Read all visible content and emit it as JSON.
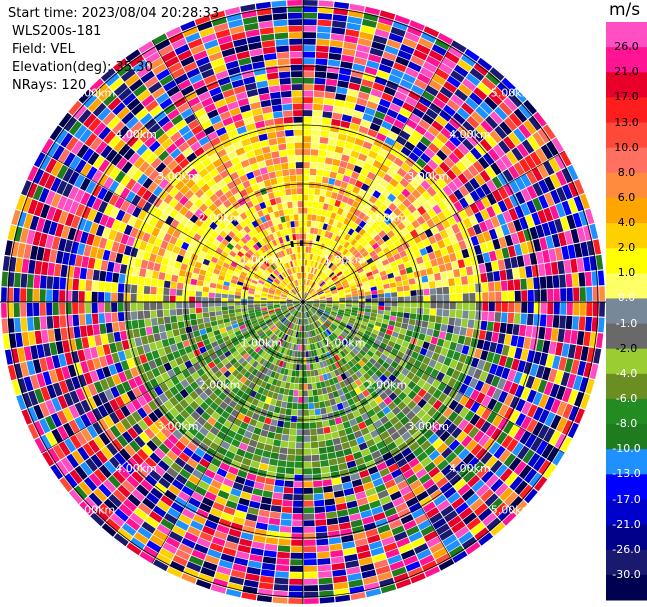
{
  "info": {
    "start_time": "Start time: 2023/08/04 20:28:33",
    "station": "WLS200s-181",
    "field": "Field: VEL",
    "elevation": "Elevation(deg): 35.30",
    "nrays": "NRays: 120"
  },
  "colorbar": {
    "unit": "m/s",
    "ticks": [
      "26.0",
      "21.0",
      "17.0",
      "13.0",
      "10.0",
      "8.0",
      "6.0",
      "4.0",
      "2.0",
      "1.0",
      "0.0",
      "-1.0",
      "-2.0",
      "-4.0",
      "-6.0",
      "-8.0",
      "-10.0",
      "-13.0",
      "-17.0",
      "-21.0",
      "-26.0",
      "-30.0"
    ],
    "colors": [
      "#ff4fc3",
      "#ff1493",
      "#e8002a",
      "#ff1e1e",
      "#ff4a3a",
      "#ff7060",
      "#ff8c3c",
      "#ffa500",
      "#ffd000",
      "#ffff00",
      "#ffff66",
      "#778899",
      "#696969",
      "#9acd32",
      "#6b8e23",
      "#228b22",
      "#1e7b1e",
      "#1e90ff",
      "#0000ff",
      "#0000cd",
      "#00008b",
      "#191970",
      "#000050"
    ]
  },
  "chart_data": {
    "type": "heatmap",
    "title": "",
    "field": "VEL",
    "units": "m/s",
    "nrays": 120,
    "range_rings_km": [
      "1.00km",
      "2.00km",
      "3.00km",
      "4.00km",
      "5.00km"
    ],
    "azimuth_spokes_deg": [
      0,
      30,
      60,
      90,
      120,
      150,
      180,
      210,
      240,
      270,
      300,
      330
    ],
    "value_range": [
      -30.0,
      26.0
    ],
    "pattern": {
      "inner_north": "positive (yellow/orange, ~2 to 8 m/s)",
      "inner_south": "negative (green, ~-2 to -8 m/s)",
      "outer": "noise / full color range beyond ~3 km"
    }
  }
}
